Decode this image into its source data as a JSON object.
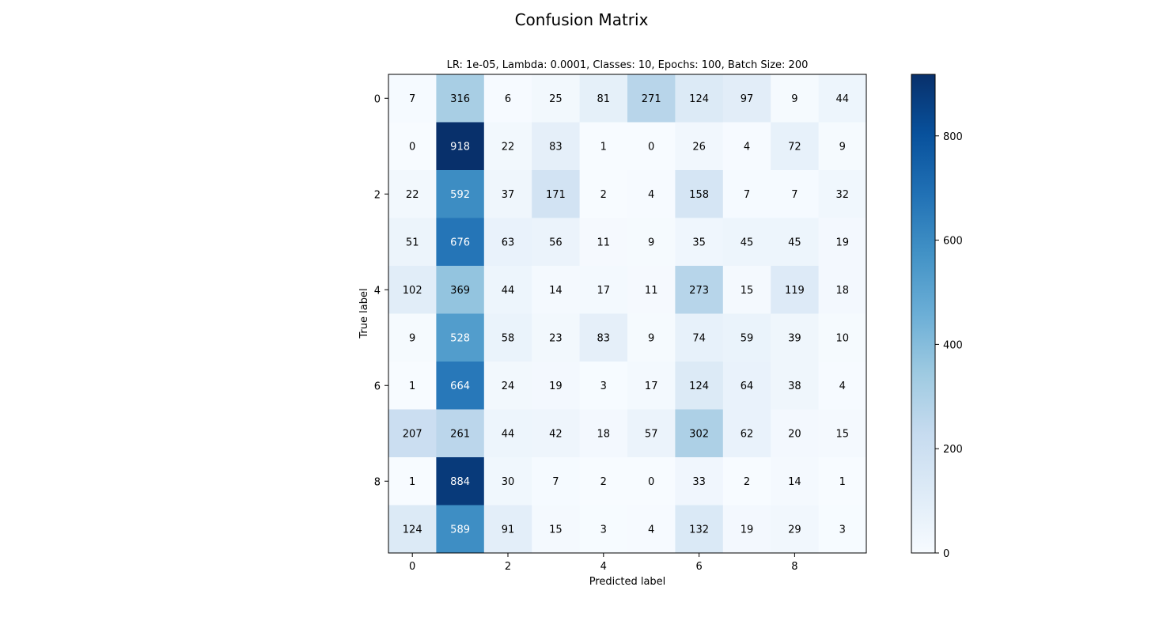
{
  "figure": {
    "title": "Confusion Matrix"
  },
  "chart_data": {
    "type": "heatmap",
    "title": "Confusion Matrix",
    "subtitle": "LR: 1e-05, Lambda: 0.0001, Classes: 10, Epochs: 100, Batch Size: 200",
    "xlabel": "Predicted label",
    "ylabel": "True label",
    "x_categories": [
      0,
      1,
      2,
      3,
      4,
      5,
      6,
      7,
      8,
      9
    ],
    "y_categories": [
      0,
      1,
      2,
      3,
      4,
      5,
      6,
      7,
      8,
      9
    ],
    "x_tick_labels": [
      "0",
      "2",
      "4",
      "6",
      "8"
    ],
    "x_tick_positions": [
      0,
      2,
      4,
      6,
      8
    ],
    "y_tick_labels": [
      "0",
      "2",
      "4",
      "6",
      "8"
    ],
    "y_tick_positions": [
      0,
      2,
      4,
      6,
      8
    ],
    "matrix": [
      [
        7,
        316,
        6,
        25,
        81,
        271,
        124,
        97,
        9,
        44
      ],
      [
        0,
        918,
        22,
        83,
        1,
        0,
        26,
        4,
        72,
        9
      ],
      [
        22,
        592,
        37,
        171,
        2,
        4,
        158,
        7,
        7,
        32
      ],
      [
        51,
        676,
        63,
        56,
        11,
        9,
        35,
        45,
        45,
        19
      ],
      [
        102,
        369,
        44,
        14,
        17,
        11,
        273,
        15,
        119,
        18
      ],
      [
        9,
        528,
        58,
        23,
        83,
        9,
        74,
        59,
        39,
        10
      ],
      [
        1,
        664,
        24,
        19,
        3,
        17,
        124,
        64,
        38,
        4
      ],
      [
        207,
        261,
        44,
        42,
        18,
        57,
        302,
        62,
        20,
        15
      ],
      [
        1,
        884,
        30,
        7,
        2,
        0,
        33,
        2,
        14,
        1
      ],
      [
        124,
        589,
        91,
        15,
        3,
        4,
        132,
        19,
        29,
        3
      ]
    ],
    "colormap": "Blues",
    "color_range": [
      0,
      918
    ],
    "text_color_threshold": 459,
    "text_colors": {
      "light_cell": "#000000",
      "dark_cell": "#ffffff"
    },
    "colorbar": {
      "ticks": [
        0,
        200,
        400,
        600,
        800
      ],
      "tick_labels": [
        "0",
        "200",
        "400",
        "600",
        "800"
      ]
    },
    "grid": false,
    "legend": "none"
  }
}
